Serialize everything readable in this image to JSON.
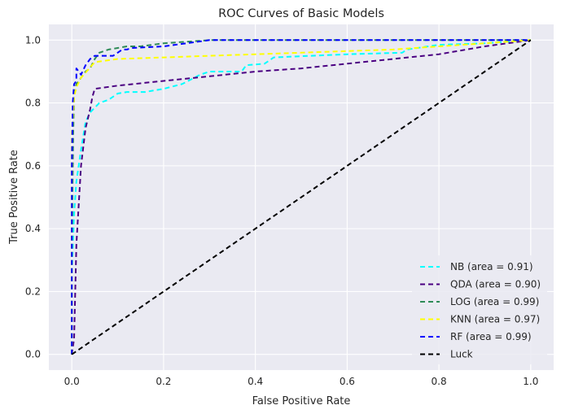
{
  "chart_data": {
    "type": "line",
    "title": "ROC Curves of Basic Models",
    "xlabel": "False Positive Rate",
    "ylabel": "True Positive Rate",
    "xlim": [
      -0.05,
      1.05
    ],
    "ylim": [
      -0.05,
      1.05
    ],
    "xticks": [
      0.0,
      0.2,
      0.4,
      0.6,
      0.8,
      1.0
    ],
    "xtick_labels": [
      "0.0",
      "0.2",
      "0.4",
      "0.6",
      "0.8",
      "1.0"
    ],
    "yticks": [
      0.0,
      0.2,
      0.4,
      0.6,
      0.8,
      1.0
    ],
    "ytick_labels": [
      "0.0",
      "0.2",
      "0.4",
      "0.6",
      "0.8",
      "1.0"
    ],
    "grid": true,
    "legend_position": "lower-right",
    "background": "#eaeaf2",
    "series": [
      {
        "name": "NB (area = 0.91)",
        "color": "#00ffff",
        "x": [
          0.0,
          0.0,
          0.005,
          0.01,
          0.02,
          0.03,
          0.04,
          0.06,
          0.08,
          0.1,
          0.12,
          0.16,
          0.18,
          0.2,
          0.24,
          0.28,
          0.3,
          0.34,
          0.37,
          0.38,
          0.42,
          0.44,
          0.6,
          0.72,
          0.73,
          0.8,
          0.9,
          1.0
        ],
        "y": [
          0.0,
          0.25,
          0.45,
          0.55,
          0.65,
          0.74,
          0.77,
          0.8,
          0.81,
          0.83,
          0.835,
          0.835,
          0.84,
          0.845,
          0.86,
          0.89,
          0.9,
          0.9,
          0.9,
          0.92,
          0.925,
          0.945,
          0.955,
          0.96,
          0.97,
          0.985,
          0.99,
          1.0
        ]
      },
      {
        "name": "QDA (area = 0.90)",
        "color": "#4b0082",
        "x": [
          0.0,
          0.005,
          0.01,
          0.02,
          0.03,
          0.04,
          0.045,
          0.05,
          0.1,
          0.2,
          0.3,
          0.4,
          0.5,
          0.6,
          0.7,
          0.8,
          0.9,
          1.0
        ],
        "y": [
          0.0,
          0.05,
          0.35,
          0.6,
          0.72,
          0.78,
          0.82,
          0.845,
          0.855,
          0.87,
          0.885,
          0.9,
          0.91,
          0.925,
          0.94,
          0.955,
          0.98,
          1.0
        ]
      },
      {
        "name": "LOG (area = 0.99)",
        "color": "#2e8b57",
        "x": [
          0.0,
          0.0,
          0.003,
          0.005,
          0.01,
          0.02,
          0.03,
          0.04,
          0.05,
          0.06,
          0.08,
          0.1,
          0.12,
          0.15,
          0.2,
          0.25,
          0.3,
          0.5,
          0.8,
          1.0
        ],
        "y": [
          0.0,
          0.3,
          0.7,
          0.82,
          0.86,
          0.88,
          0.9,
          0.91,
          0.94,
          0.96,
          0.97,
          0.975,
          0.98,
          0.98,
          0.99,
          0.995,
          1.0,
          1.0,
          1.0,
          1.0
        ]
      },
      {
        "name": "KNN (area = 0.97)",
        "color": "#ffff00",
        "x": [
          0.0,
          0.0,
          0.005,
          0.01,
          0.02,
          0.05,
          0.1,
          0.2,
          0.3,
          0.4,
          0.5,
          0.6,
          0.7,
          0.8,
          0.9,
          1.0
        ],
        "y": [
          0.0,
          0.7,
          0.82,
          0.85,
          0.88,
          0.93,
          0.94,
          0.945,
          0.95,
          0.955,
          0.96,
          0.965,
          0.97,
          0.98,
          0.99,
          1.0
        ]
      },
      {
        "name": "RF (area = 0.99)",
        "color": "#0000ff",
        "x": [
          0.0,
          0.0,
          0.002,
          0.005,
          0.01,
          0.01,
          0.02,
          0.03,
          0.04,
          0.05,
          0.07,
          0.09,
          0.1,
          0.11,
          0.12,
          0.13,
          0.2,
          0.25,
          0.3,
          0.5,
          0.8,
          1.0
        ],
        "y": [
          0.0,
          0.6,
          0.8,
          0.86,
          0.87,
          0.91,
          0.89,
          0.92,
          0.94,
          0.95,
          0.95,
          0.95,
          0.96,
          0.97,
          0.97,
          0.975,
          0.98,
          0.99,
          1.0,
          1.0,
          1.0,
          1.0
        ]
      },
      {
        "name": "Luck",
        "color": "#000000",
        "x": [
          0.0,
          1.0
        ],
        "y": [
          0.0,
          1.0
        ]
      }
    ]
  }
}
